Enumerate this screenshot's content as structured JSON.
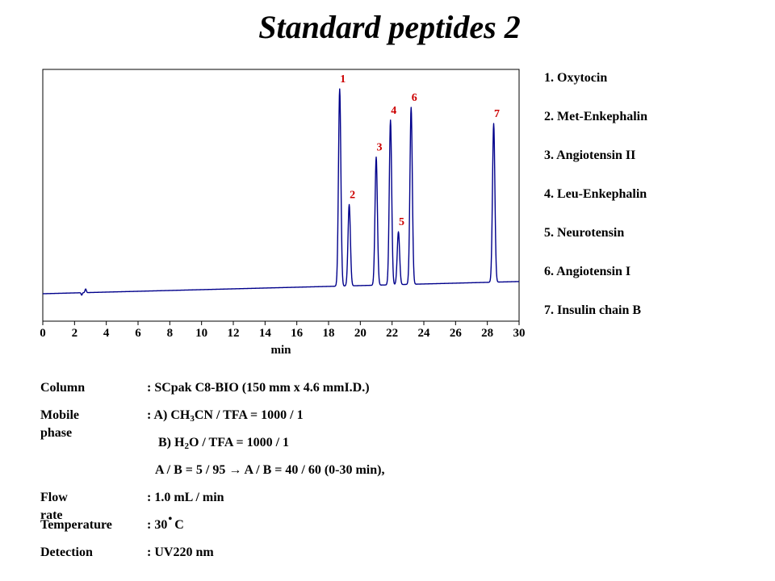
{
  "title": "Standard peptides 2",
  "chart_data": {
    "type": "line",
    "xlabel": "min",
    "ylabel": "",
    "xlim": [
      0,
      30
    ],
    "xticks": [
      0,
      2,
      4,
      6,
      8,
      10,
      12,
      14,
      16,
      18,
      20,
      22,
      24,
      26,
      28,
      30
    ],
    "grid": false,
    "line_color": "#00008B",
    "label_color": "#CC0000",
    "baseline": {
      "start": 0.0,
      "end": 0.06
    },
    "series": [
      {
        "peaks": [
          {
            "label": "1",
            "rt": 18.7,
            "height": 0.97
          },
          {
            "label": "2",
            "rt": 19.3,
            "height": 0.4
          },
          {
            "label": "3",
            "rt": 21.0,
            "height": 0.63
          },
          {
            "label": "4",
            "rt": 21.9,
            "height": 0.81
          },
          {
            "label": "5",
            "rt": 22.4,
            "height": 0.26
          },
          {
            "label": "6",
            "rt": 23.2,
            "height": 0.87
          },
          {
            "label": "7",
            "rt": 28.4,
            "height": 0.78
          }
        ]
      }
    ]
  },
  "legend": [
    "1. Oxytocin",
    "2. Met-Enkephalin",
    "3. Angiotensin II",
    "4. Leu-Enkephalin",
    "5. Neurotensin",
    "6. Angiotensin I",
    "7. Insulin chain B"
  ],
  "conditions": {
    "column": {
      "label": "Column",
      "value": ": SCpak C8-BIO  (150 mm  x 4.6 mmI.D.)"
    },
    "mobile_phase": {
      "label": "Mobile phase",
      "a_prefix": ": A) CH",
      "a_sub": "3",
      "a_suffix": "CN / TFA = 1000 / 1",
      "b_prefix": "B) H",
      "b_sub": "2",
      "b_suffix": "O / TFA = 1000 / 1",
      "gradient": "A / B = 5 / 95 → A / B = 40 / 60 (0-30 min),"
    },
    "flow_rate": {
      "label": "Flow rate",
      "value": ": 1.0 mL / min"
    },
    "temperature": {
      "label": "Temperature",
      "value_prefix": ": 30",
      "degree": "•",
      "value_suffix": "C"
    },
    "detection": {
      "label": "Detection",
      "value": ": UV220 nm"
    }
  }
}
